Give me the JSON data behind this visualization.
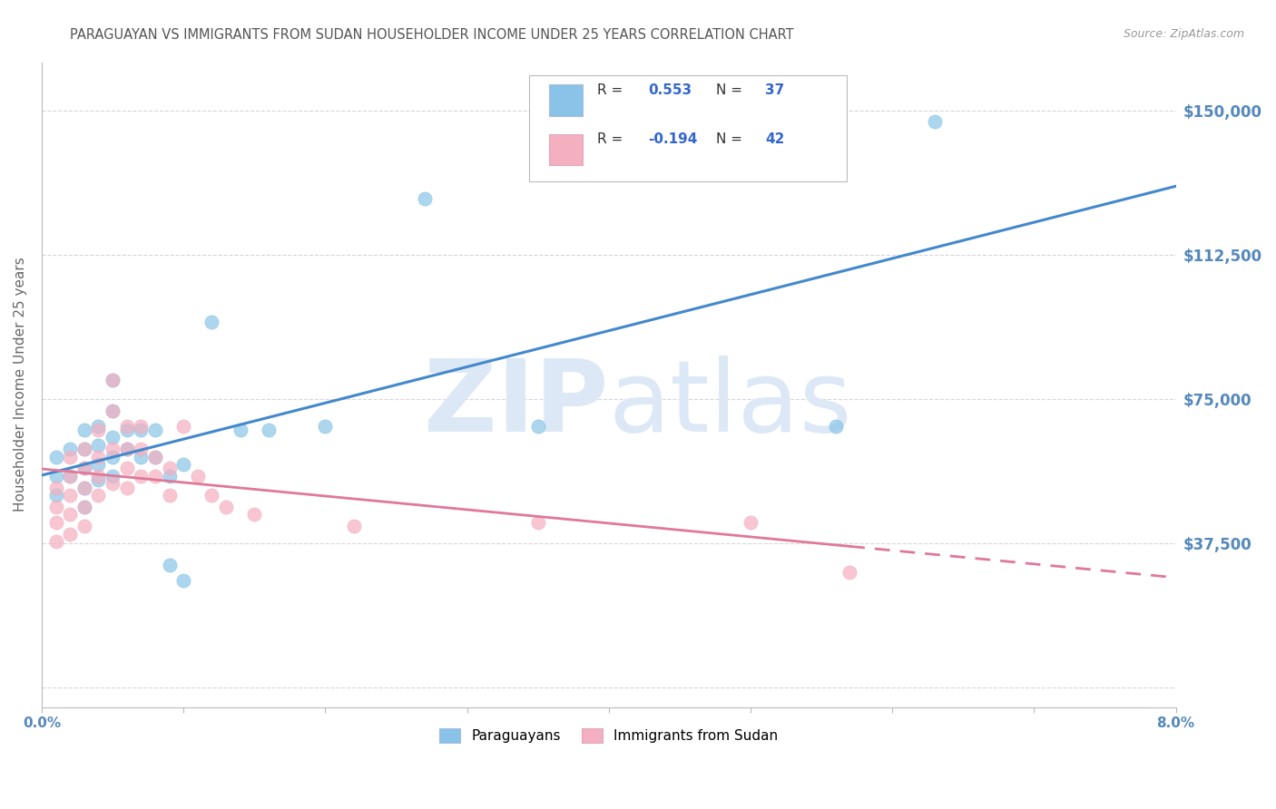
{
  "title": "PARAGUAYAN VS IMMIGRANTS FROM SUDAN HOUSEHOLDER INCOME UNDER 25 YEARS CORRELATION CHART",
  "source": "Source: ZipAtlas.com",
  "ylabel": "Householder Income Under 25 years",
  "watermark_zip": "ZIP",
  "watermark_atlas": "atlas",
  "xlim": [
    0.0,
    0.08
  ],
  "ylim": [
    -5000,
    162500
  ],
  "plot_ylim": [
    0,
    162500
  ],
  "yticks": [
    0,
    37500,
    75000,
    112500,
    150000
  ],
  "ytick_labels_right": [
    "",
    "$37,500",
    "$75,000",
    "$112,500",
    "$150,000"
  ],
  "xticks": [
    0.0,
    0.01,
    0.02,
    0.03,
    0.04,
    0.05,
    0.06,
    0.07,
    0.08
  ],
  "xtick_labels": [
    "0.0%",
    "",
    "",
    "",
    "",
    "",
    "",
    "",
    "8.0%"
  ],
  "paraguayan_R": 0.553,
  "paraguayan_N": 37,
  "sudan_R": -0.194,
  "sudan_N": 42,
  "blue_scatter_color": "#89c4e8",
  "pink_scatter_color": "#f4afc0",
  "blue_line_color": "#4488cc",
  "pink_line_color": "#e07898",
  "axis_tick_color": "#5588bb",
  "ylabel_color": "#666666",
  "title_color": "#555555",
  "source_color": "#999999",
  "legend_text_dark": "#333333",
  "legend_R_color": "#3366cc",
  "grid_color": "#cccccc",
  "spine_color": "#bbbbbb",
  "par_x": [
    0.001,
    0.001,
    0.001,
    0.002,
    0.002,
    0.003,
    0.003,
    0.003,
    0.003,
    0.003,
    0.004,
    0.004,
    0.004,
    0.004,
    0.005,
    0.005,
    0.005,
    0.005,
    0.005,
    0.006,
    0.006,
    0.007,
    0.007,
    0.008,
    0.008,
    0.009,
    0.009,
    0.01,
    0.01,
    0.012,
    0.014,
    0.016,
    0.02,
    0.027,
    0.035,
    0.056,
    0.063
  ],
  "par_y": [
    60000,
    55000,
    50000,
    62000,
    55000,
    67000,
    62000,
    57000,
    52000,
    47000,
    68000,
    63000,
    58000,
    54000,
    80000,
    72000,
    65000,
    60000,
    55000,
    67000,
    62000,
    67000,
    60000,
    67000,
    60000,
    55000,
    32000,
    58000,
    28000,
    95000,
    67000,
    67000,
    68000,
    127000,
    68000,
    68000,
    147000
  ],
  "sud_x": [
    0.001,
    0.001,
    0.001,
    0.001,
    0.002,
    0.002,
    0.002,
    0.002,
    0.002,
    0.003,
    0.003,
    0.003,
    0.003,
    0.003,
    0.004,
    0.004,
    0.004,
    0.004,
    0.005,
    0.005,
    0.005,
    0.005,
    0.006,
    0.006,
    0.006,
    0.006,
    0.007,
    0.007,
    0.007,
    0.008,
    0.008,
    0.009,
    0.009,
    0.01,
    0.011,
    0.012,
    0.013,
    0.015,
    0.022,
    0.035,
    0.05,
    0.057
  ],
  "sud_y": [
    52000,
    47000,
    43000,
    38000,
    60000,
    55000,
    50000,
    45000,
    40000,
    62000,
    57000,
    52000,
    47000,
    42000,
    67000,
    60000,
    55000,
    50000,
    80000,
    72000,
    62000,
    53000,
    68000,
    62000,
    57000,
    52000,
    68000,
    62000,
    55000,
    60000,
    55000,
    57000,
    50000,
    68000,
    55000,
    50000,
    47000,
    45000,
    42000,
    43000,
    43000,
    30000
  ]
}
